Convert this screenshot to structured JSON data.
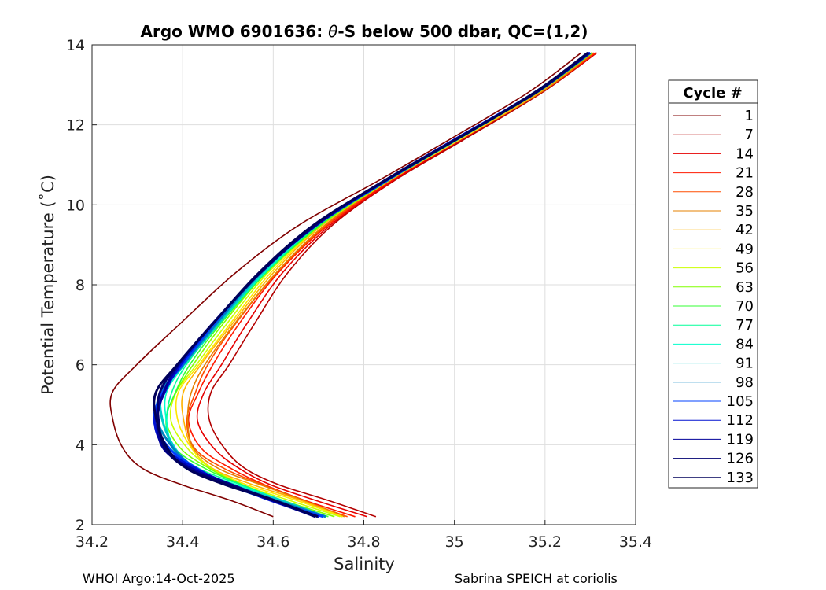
{
  "chart_data": {
    "type": "line",
    "title_prefix": "Argo WMO 6901636: ",
    "title_symbol": "θ",
    "title_suffix": "-S below 500 dbar,  QC=(1,2)",
    "xlabel": "Salinity",
    "ylabel": "Potential Temperature (˚C)",
    "xlim": [
      34.2,
      35.4
    ],
    "ylim": [
      2,
      14
    ],
    "xticks": [
      "34.2",
      "34.4",
      "34.6",
      "34.8",
      "35",
      "35.2",
      "35.4"
    ],
    "yticks": [
      "2",
      "4",
      "6",
      "8",
      "10",
      "12",
      "14"
    ],
    "grid": true,
    "legend": {
      "title": "Cycle #",
      "placement": "outside-right",
      "entries": [
        {
          "label": "1",
          "color": "#800000"
        },
        {
          "label": "7",
          "color": "#b30000"
        },
        {
          "label": "14",
          "color": "#e60000"
        },
        {
          "label": "21",
          "color": "#ff1a00"
        },
        {
          "label": "28",
          "color": "#ff4d00"
        },
        {
          "label": "35",
          "color": "#e68000"
        },
        {
          "label": "42",
          "color": "#ffb300"
        },
        {
          "label": "49",
          "color": "#ffe600"
        },
        {
          "label": "56",
          "color": "#ccff00"
        },
        {
          "label": "63",
          "color": "#80ff00"
        },
        {
          "label": "70",
          "color": "#33ff33"
        },
        {
          "label": "77",
          "color": "#00ff99"
        },
        {
          "label": "84",
          "color": "#00ffcc"
        },
        {
          "label": "91",
          "color": "#00cccc"
        },
        {
          "label": "98",
          "color": "#0080c0"
        },
        {
          "label": "105",
          "color": "#0040ff"
        },
        {
          "label": "112",
          "color": "#0010d0"
        },
        {
          "label": "119",
          "color": "#000099"
        },
        {
          "label": "126",
          "color": "#000070"
        },
        {
          "label": "133",
          "color": "#00005a"
        }
      ]
    },
    "mean_profile": {
      "salinity": [
        34.72,
        34.62,
        34.52,
        34.44,
        34.385,
        34.36,
        34.37,
        34.41,
        34.48,
        34.58,
        34.7,
        34.85,
        35.0,
        35.18,
        35.3
      ],
      "temperature": [
        2.2,
        2.6,
        3.0,
        3.4,
        3.9,
        4.6,
        5.3,
        6.0,
        7.0,
        8.3,
        9.5,
        10.6,
        11.6,
        12.8,
        13.8
      ]
    },
    "series": [
      {
        "name": "1",
        "color": "#800000",
        "offset": -0.12
      },
      {
        "name": "7",
        "color": "#b30000",
        "offset": 0.1
      },
      {
        "name": "14",
        "color": "#e60000",
        "offset": 0.08
      },
      {
        "name": "21",
        "color": "#ff1a00",
        "offset": 0.06
      },
      {
        "name": "28",
        "color": "#ff4d00",
        "offset": 0.05
      },
      {
        "name": "35",
        "color": "#e68000",
        "offset": 0.045
      },
      {
        "name": "42",
        "color": "#ffb300",
        "offset": 0.035
      },
      {
        "name": "49",
        "color": "#ffe600",
        "offset": 0.028
      },
      {
        "name": "56",
        "color": "#ccff00",
        "offset": 0.02
      },
      {
        "name": "63",
        "color": "#80ff00",
        "offset": 0.012
      },
      {
        "name": "70",
        "color": "#33ff33",
        "offset": 0.006
      },
      {
        "name": "77",
        "color": "#00ff99",
        "offset": 0.0
      },
      {
        "name": "84",
        "color": "#00ffcc",
        "offset": -0.004
      },
      {
        "name": "91",
        "color": "#00cccc",
        "offset": -0.008
      },
      {
        "name": "98",
        "color": "#0080c0",
        "offset": -0.012
      },
      {
        "name": "105",
        "color": "#0040ff",
        "offset": -0.015
      },
      {
        "name": "112",
        "color": "#0010d0",
        "offset": -0.017
      },
      {
        "name": "119",
        "color": "#000099",
        "offset": -0.019
      },
      {
        "name": "126",
        "color": "#000070",
        "offset": -0.021
      },
      {
        "name": "133",
        "color": "#00005a",
        "offset": -0.023
      }
    ]
  },
  "footer": {
    "left": "WHOI Argo:14-Oct-2025",
    "right": "Sabrina SPEICH at coriolis"
  }
}
